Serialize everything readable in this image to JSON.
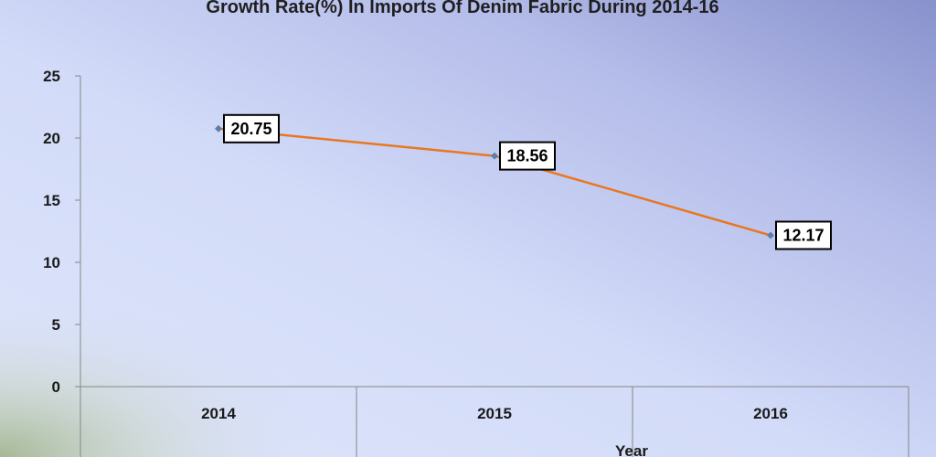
{
  "chart_data": {
    "type": "line",
    "title": "Growth Rate(%) In Imports Of Denim Fabric During 2014-16",
    "xlabel": "Year",
    "ylabel": "",
    "categories": [
      "2014",
      "2015",
      "2016"
    ],
    "series": [
      {
        "values": [
          20.75,
          18.56,
          12.17
        ],
        "color": "#e87722"
      }
    ],
    "data_labels": [
      "20.75",
      "18.56",
      "12.17"
    ],
    "yticks": [
      "0",
      "5",
      "10",
      "15",
      "20",
      "25"
    ],
    "ylim": [
      0,
      25
    ],
    "grid": false,
    "legend": "none",
    "colors": {
      "line": "#e87722",
      "marker": "#5b7fa6",
      "axis": "#868686",
      "background_light": "#dfe6fb",
      "background_dark": "#8891cc"
    }
  }
}
